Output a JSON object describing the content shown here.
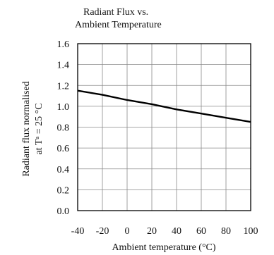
{
  "chart_data": {
    "type": "line",
    "title_lines": [
      "Radiant Flux vs.",
      "Ambient Temperature"
    ],
    "xlabel": "Ambient temperature (°C)",
    "ylabel_lines": [
      "Radiant flux normalised",
      "at Tᵃ = 25 °C"
    ],
    "xlim": [
      -40,
      100
    ],
    "ylim": [
      0.0,
      1.6
    ],
    "xticks": [
      -40,
      -20,
      0,
      20,
      40,
      60,
      80,
      100
    ],
    "xtick_labels": [
      "-40",
      "-20",
      "0",
      "20",
      "40",
      "60",
      "80",
      "100"
    ],
    "yticks": [
      0.0,
      0.2,
      0.4,
      0.6,
      0.8,
      1.0,
      1.2,
      1.4,
      1.6
    ],
    "ytick_labels": [
      "0.0",
      "0.2",
      "0.4",
      "0.6",
      "0.8",
      "1.0",
      "1.2",
      "1.4",
      "1.6"
    ],
    "grid": true,
    "series": [
      {
        "x": [
          -40,
          -20,
          0,
          20,
          40,
          60,
          80,
          100
        ],
        "y": [
          1.15,
          1.11,
          1.06,
          1.02,
          0.97,
          0.93,
          0.89,
          0.85
        ]
      }
    ],
    "colors": {
      "line": "#000000",
      "grid": "#8a8a8a",
      "frame": "#000000"
    }
  }
}
